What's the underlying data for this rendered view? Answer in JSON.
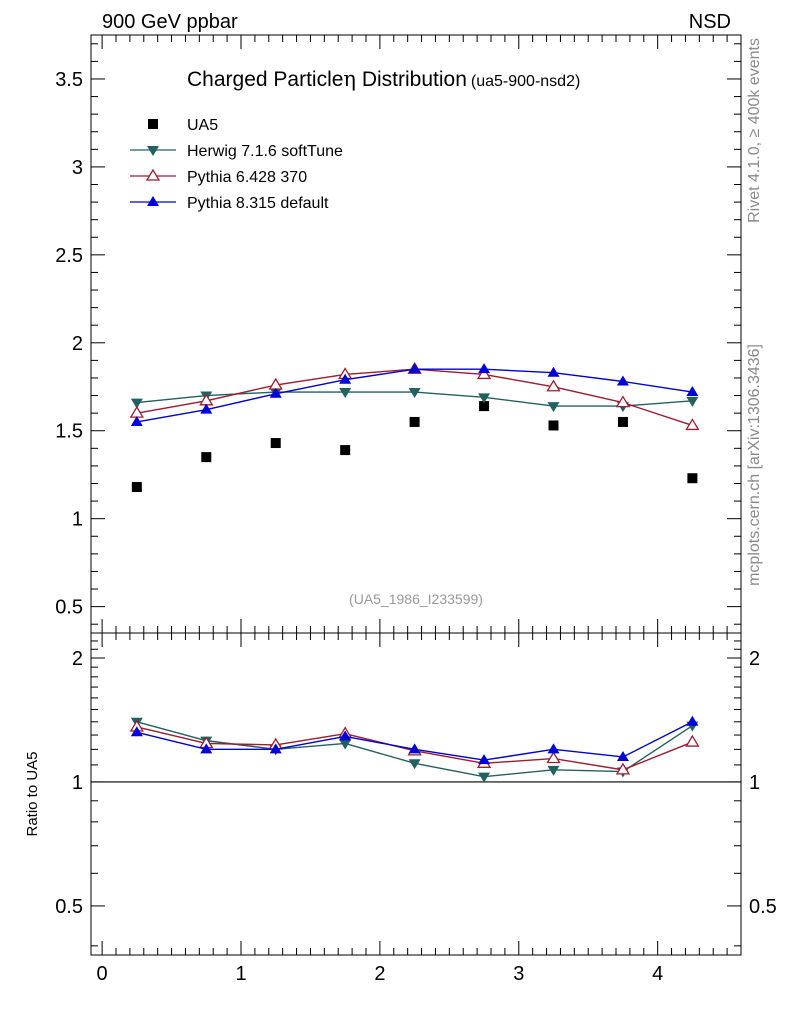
{
  "header": {
    "left": "900 GeV ppbar",
    "right": "NSD"
  },
  "side_labels": {
    "rivet": "Rivet 4.1.0, ≥ 400k events",
    "mcplots": "mcplots.cern.ch [arXiv:1306.3436]"
  },
  "watermark": "(UA5_1986_I233599)",
  "chart_data": [
    {
      "type": "scatter",
      "title": "Charged Particle",
      "title_symbol": "η",
      "title_rest": " Distribution",
      "subtitle": "(ua5-900-nsd2)",
      "xlabel": "",
      "ylabel": "",
      "xlim": [
        -0.08,
        4.6
      ],
      "ylim": [
        0.35,
        3.75
      ],
      "x_ticks": [
        "0",
        "1",
        "2",
        "3",
        "4"
      ],
      "x_tick_values": [
        0,
        1,
        2,
        3,
        4
      ],
      "y_ticks": [
        "0.5",
        "1",
        "1.5",
        "2",
        "2.5",
        "3",
        "3.5"
      ],
      "y_tick_values": [
        0.5,
        1,
        1.5,
        2,
        2.5,
        3,
        3.5
      ],
      "x": [
        0.25,
        0.75,
        1.25,
        1.75,
        2.25,
        2.75,
        3.25,
        3.75,
        4.25
      ],
      "legend_position": "top-left",
      "series": [
        {
          "name": "UA5",
          "color": "#000000",
          "marker": "square",
          "line": false,
          "values": [
            1.18,
            1.35,
            1.43,
            1.39,
            1.55,
            1.64,
            1.53,
            1.55,
            1.23
          ]
        },
        {
          "name": "Herwig 7.1.6 softTune",
          "color": "#236060",
          "marker": "triangle-down",
          "line": true,
          "values": [
            1.66,
            1.7,
            1.72,
            1.72,
            1.72,
            1.69,
            1.64,
            1.64,
            1.67
          ]
        },
        {
          "name": "Pythia 6.428 370",
          "color": "#9c1c30",
          "marker": "triangle-open",
          "line": true,
          "values": [
            1.6,
            1.67,
            1.76,
            1.82,
            1.85,
            1.82,
            1.75,
            1.66,
            1.53
          ]
        },
        {
          "name": "Pythia 8.315 default",
          "color": "#0000d8",
          "marker": "triangle-up",
          "line": true,
          "values": [
            1.55,
            1.62,
            1.71,
            1.79,
            1.85,
            1.85,
            1.83,
            1.78,
            1.72
          ]
        }
      ]
    },
    {
      "type": "line",
      "title": "",
      "xlabel": "",
      "ylabel": "Ratio to UA5",
      "scale": "log",
      "xlim": [
        -0.08,
        4.6
      ],
      "ylim": [
        0.38,
        2.3
      ],
      "reference_line": 1,
      "y_ticks": [
        "0.5",
        "1",
        "2"
      ],
      "y_tick_values": [
        0.5,
        1,
        2
      ],
      "x": [
        0.25,
        0.75,
        1.25,
        1.75,
        2.25,
        2.75,
        3.25,
        3.75,
        4.25
      ],
      "series": [
        {
          "name": "Herwig 7.1.6 softTune",
          "color": "#236060",
          "marker": "triangle-down",
          "values": [
            1.4,
            1.26,
            1.2,
            1.24,
            1.11,
            1.03,
            1.07,
            1.06,
            1.37
          ]
        },
        {
          "name": "Pythia 6.428 370",
          "color": "#9c1c30",
          "marker": "triangle-open",
          "values": [
            1.36,
            1.24,
            1.23,
            1.31,
            1.19,
            1.11,
            1.14,
            1.07,
            1.25
          ]
        },
        {
          "name": "Pythia 8.315 default",
          "color": "#0000d8",
          "marker": "triangle-up",
          "values": [
            1.32,
            1.2,
            1.2,
            1.29,
            1.2,
            1.13,
            1.2,
            1.15,
            1.4
          ]
        }
      ]
    }
  ]
}
